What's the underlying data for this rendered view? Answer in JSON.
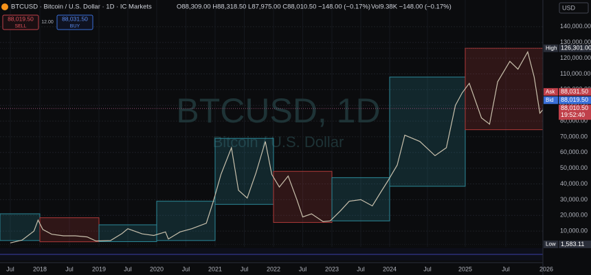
{
  "header": {
    "symbol": "BTCUSD · Bitcoin / U.S. Dollar · 1D · IC Markets",
    "ohlc": "O88,309.00 H88,318.50 L87,975.00 C88,010.50 −148.00 (−0.17%)",
    "vol": "Vol9.38K −148.00 (−0.17%)"
  },
  "trade": {
    "sell_price": "88,019.50",
    "sell": "SELL",
    "spread": "12.00",
    "buy_price": "88,031.50",
    "buy": "BUY"
  },
  "watermark": {
    "title": "BTCUSD, 1D",
    "subtitle": "Bitcoin / U.S. Dollar"
  },
  "currency": "USD",
  "chart_data": {
    "type": "line",
    "x": [
      2017.5,
      2017.7,
      2017.9,
      2017.97,
      2018.05,
      2018.2,
      2018.4,
      2018.6,
      2018.8,
      2018.95,
      2019.2,
      2019.4,
      2019.5,
      2019.75,
      2019.95,
      2020.15,
      2020.2,
      2020.4,
      2020.6,
      2020.85,
      2020.97,
      2021.1,
      2021.28,
      2021.4,
      2021.55,
      2021.7,
      2021.86,
      2021.97,
      2022.1,
      2022.25,
      2022.4,
      2022.5,
      2022.65,
      2022.85,
      2022.97,
      2023.15,
      2023.3,
      2023.5,
      2023.7,
      2023.85,
      2023.97,
      2024.1,
      2024.2,
      2024.4,
      2024.6,
      2024.75,
      2024.87,
      2024.96,
      2025.05,
      2025.2,
      2025.3,
      2025.4,
      2025.55,
      2025.65,
      2025.77,
      2025.85,
      2025.92,
      2025.97
    ],
    "series": [
      {
        "name": "BTCUSD",
        "color": "#c9c1ad",
        "values": [
          2500,
          4300,
          10000,
          17000,
          11000,
          8000,
          7000,
          7000,
          6300,
          3700,
          4000,
          8500,
          11500,
          8200,
          7200,
          9500,
          5000,
          9500,
          11500,
          15000,
          29000,
          46000,
          63000,
          36000,
          31000,
          47000,
          67000,
          46000,
          38000,
          45000,
          30000,
          19000,
          21000,
          16000,
          16500,
          23000,
          29000,
          30000,
          26000,
          35000,
          42000,
          52000,
          71000,
          67000,
          58000,
          63000,
          90000,
          98000,
          104000,
          82000,
          78000,
          105000,
          118000,
          113000,
          124000,
          108000,
          85000,
          88010.5
        ]
      }
    ],
    "boxes": [
      {
        "start": 2017.3,
        "end": 2018,
        "low": 4000,
        "high": 21000,
        "color": "#2c8a9a"
      },
      {
        "start": 2018,
        "end": 2019,
        "low": 3200,
        "high": 18500,
        "color": "#b03a3a"
      },
      {
        "start": 2019,
        "end": 2020,
        "low": 3300,
        "high": 14000,
        "color": "#2c8a9a"
      },
      {
        "start": 2020,
        "end": 2021,
        "low": 4000,
        "high": 29000,
        "color": "#2c8a9a"
      },
      {
        "start": 2021,
        "end": 2022,
        "low": 27000,
        "high": 69000,
        "color": "#2c8a9a"
      },
      {
        "start": 2022,
        "end": 2023,
        "low": 15500,
        "high": 48000,
        "color": "#b03a3a"
      },
      {
        "start": 2023,
        "end": 2024,
        "low": 16500,
        "high": 44000,
        "color": "#2c8a9a"
      },
      {
        "start": 2024,
        "end": 2025,
        "low": 38500,
        "high": 108000,
        "color": "#2c8a9a"
      },
      {
        "start": 2025,
        "end": 2026,
        "low": 74500,
        "high": 126301,
        "color": "#b03a3a"
      }
    ],
    "xlim": [
      2017.3,
      2026.05
    ],
    "xticks": [
      {
        "value": 2017.5,
        "label": "Jul"
      },
      2018,
      {
        "value": 2018.5,
        "label": "Jul"
      },
      2019,
      {
        "value": 2019.5,
        "label": "Jul"
      },
      2020,
      {
        "value": 2020.5,
        "label": "Jul"
      },
      2021,
      {
        "value": 2021.5,
        "label": "Jul"
      },
      2022,
      {
        "value": 2022.5,
        "label": "Jul"
      },
      2023,
      {
        "value": 2023.5,
        "label": "Jul"
      },
      2024,
      {
        "value": 2024.5,
        "label": "Jul"
      },
      2025,
      {
        "value": 2025.5,
        "label": "Jul"
      },
      2026
    ],
    "ylim": [
      0,
      157000
    ],
    "yticks": [
      {
        "value": 10000,
        "label": "10,000.00"
      },
      {
        "value": 20000,
        "label": "20,000.00"
      },
      {
        "value": 30000,
        "label": "30,000.00"
      },
      {
        "value": 40000,
        "label": "40,000.00"
      },
      {
        "value": 50000,
        "label": "50,000.00"
      },
      {
        "value": 60000,
        "label": "60,000.00"
      },
      {
        "value": 70000,
        "label": "70,000.00"
      },
      {
        "value": 80000,
        "label": "80,000.00"
      },
      {
        "value": 90000,
        "label": "90,000.00"
      },
      {
        "value": 100000,
        "label": "100,000.00"
      },
      {
        "value": 110000,
        "label": "110,000.00"
      },
      {
        "value": 120000,
        "label": "120,000.00"
      },
      {
        "value": 130000,
        "label": "130,000.00"
      },
      {
        "value": 140000,
        "label": "140,000.00"
      }
    ],
    "grid": true,
    "price_labels": [
      {
        "tag": "High",
        "value": 126301,
        "label": "126,301.00",
        "color": "#2a2e39"
      },
      {
        "tag": "Ask",
        "value": 88031.5,
        "label": "88,031.50",
        "color": "#c0404a"
      },
      {
        "tag": "Bid",
        "value": 88019.5,
        "label": "88,019.50",
        "color": "#3a6fd8"
      },
      {
        "value": 88010.5,
        "label": "88,010.50",
        "time": "19:52:40",
        "color": "#c0404a"
      },
      {
        "tag": "Low",
        "value": 1583.11,
        "label": "1,583.11",
        "color": "#2a2e39"
      }
    ]
  }
}
